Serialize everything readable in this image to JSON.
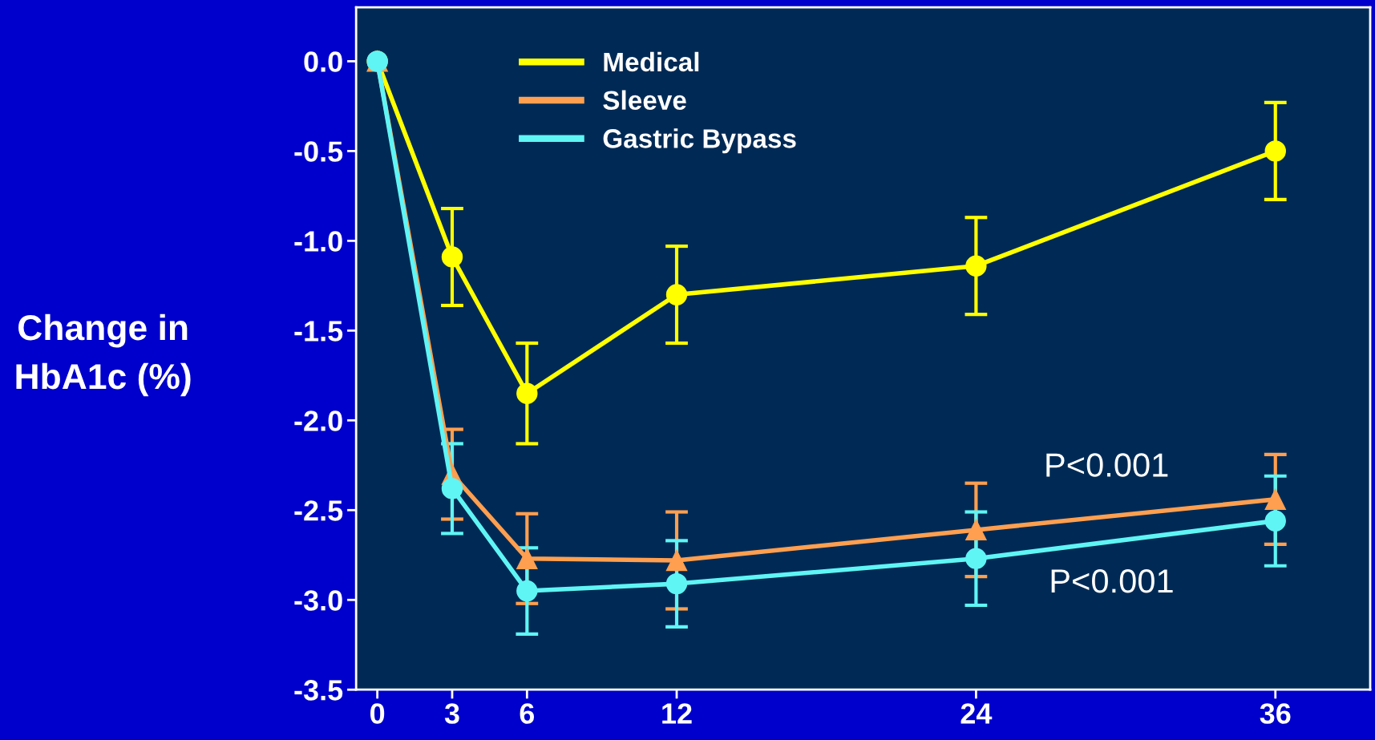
{
  "chart_data": {
    "type": "line",
    "ylabel": "Change in\nHbA1c (%)",
    "x": [
      0,
      3,
      6,
      12,
      24,
      36
    ],
    "series": [
      {
        "name": "Medical",
        "color": "#ffff00",
        "marker": "circle",
        "values": [
          0,
          -1.09,
          -1.85,
          -1.3,
          -1.14,
          -0.5
        ],
        "errors": [
          null,
          0.27,
          0.28,
          0.27,
          0.27,
          0.27
        ]
      },
      {
        "name": "Sleeve",
        "color": "#ff9f4f",
        "marker": "triangle",
        "values": [
          0,
          -2.3,
          -2.77,
          -2.78,
          -2.61,
          -2.44
        ],
        "errors": [
          null,
          0.25,
          0.25,
          0.27,
          0.26,
          0.25
        ]
      },
      {
        "name": "Gastric Bypass",
        "color": "#5ff5f5",
        "marker": "circle",
        "values": [
          0,
          -2.38,
          -2.95,
          -2.91,
          -2.77,
          -2.56
        ],
        "errors": [
          null,
          0.25,
          0.24,
          0.24,
          0.26,
          0.25
        ]
      }
    ],
    "xlim": [
      -0.85,
      39.8
    ],
    "ylim": [
      -3.5,
      0.3
    ],
    "xticks": [
      0,
      3,
      6,
      12,
      24,
      36
    ],
    "yticks": [
      {
        "value": 0,
        "label": "0.0"
      },
      {
        "value": -0.5,
        "label": "-0.5"
      },
      {
        "value": -1,
        "label": "-1.0"
      },
      {
        "value": -1.5,
        "label": "-1.5"
      },
      {
        "value": -2,
        "label": "-2.0"
      },
      {
        "value": -2.5,
        "label": "-2.5"
      },
      {
        "value": -3,
        "label": "-3.0"
      },
      {
        "value": -3.5,
        "label": "-3.5"
      }
    ],
    "annotations": [
      "P<0.001",
      "P<0.001"
    ],
    "legend": "top left",
    "grid": false,
    "line_style": "solid"
  }
}
